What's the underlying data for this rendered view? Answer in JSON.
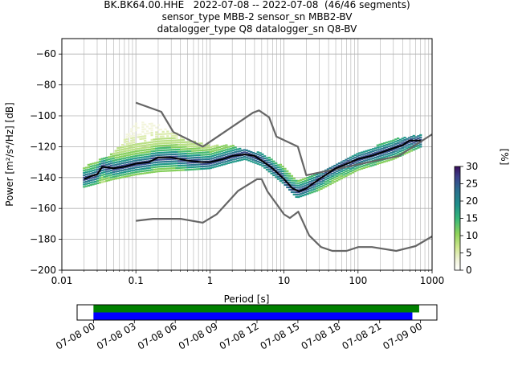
{
  "title_lines": [
    "BK.BK64.00.HHE   2022-07-08 -- 2022-07-08  (46/46 segments)",
    "sensor_type MBB-2 sensor_sn MBB2-BV",
    "datalogger_type Q8 datalogger_sn Q8-BV"
  ],
  "chart_data": [
    {
      "type": "heatmap",
      "xlabel": "Period [s]",
      "ylabel": "Power [m²/s⁴/Hz] [dB]",
      "xscale": "log",
      "xlim": [
        0.01,
        1000
      ],
      "ylim": [
        -200,
        -50
      ],
      "x_ticks": [
        0.01,
        0.1,
        1,
        10,
        100,
        1000
      ],
      "x_tick_labels": [
        "0.01",
        "0.1",
        "1",
        "10",
        "100",
        "1000"
      ],
      "y_ticks": [
        -200,
        -180,
        -160,
        -140,
        -120,
        -100,
        -80,
        -60
      ],
      "y_tick_labels": [
        "−200",
        "−180",
        "−160",
        "−140",
        "−120",
        "−100",
        "−80",
        "−60"
      ],
      "grid": true,
      "colorbar": {
        "label": "[%]",
        "range": [
          0,
          30
        ],
        "ticks": [
          0,
          5,
          10,
          15,
          20,
          25,
          30
        ],
        "tick_labels": [
          "0",
          "5",
          "10",
          "15",
          "20",
          "25",
          "30"
        ],
        "colormap": "pqlx"
      },
      "mode_curve": {
        "period": [
          0.02,
          0.025,
          0.03,
          0.035,
          0.05,
          0.07,
          0.1,
          0.15,
          0.2,
          0.3,
          0.5,
          0.8,
          1.0,
          1.5,
          2.0,
          3.0,
          4.0,
          5.0,
          7.0,
          10.0,
          13.0,
          16.0,
          20.0,
          30.0,
          50.0,
          80.0,
          100.0,
          150.0,
          200.0,
          300.0,
          400.0,
          500.0,
          700.0
        ],
        "db": [
          -141,
          -139,
          -138,
          -133,
          -134,
          -133,
          -131,
          -130,
          -127,
          -127,
          -129,
          -130,
          -130,
          -128,
          -126,
          -125,
          -126,
          -129,
          -134,
          -141,
          -147,
          -149,
          -147,
          -141,
          -134,
          -130,
          -128,
          -126,
          -124,
          -121,
          -119,
          -116,
          -116
        ]
      },
      "spread_band": {
        "period": [
          0.02,
          0.05,
          0.1,
          0.2,
          0.5,
          1.0,
          2.0,
          3.0,
          5.0,
          10.0,
          15.0,
          30.0,
          100.0,
          300.0,
          700.0
        ],
        "db_min": [
          -146,
          -141,
          -138,
          -136,
          -135,
          -134,
          -130,
          -128,
          -132,
          -144,
          -153,
          -148,
          -135,
          -128,
          -120
        ],
        "db_max": [
          -133,
          -124,
          -104,
          -105,
          -115,
          -119,
          -119,
          -122,
          -124,
          -133,
          -142,
          -136,
          -124,
          -115,
          -112
        ]
      },
      "nhnm": {
        "period": [
          0.1,
          0.22,
          0.32,
          0.8,
          3.8,
          4.6,
          6.3,
          7.9,
          15.4,
          20.0,
          354.8,
          1000.0
        ],
        "db": [
          -91.5,
          -97.4,
          -110.5,
          -120.0,
          -98.0,
          -96.5,
          -101.0,
          -113.5,
          -120.0,
          -138.5,
          -126.0,
          -112.0
        ]
      },
      "nlnm": {
        "period": [
          0.1,
          0.17,
          0.4,
          0.8,
          1.24,
          2.4,
          4.3,
          5.0,
          6.0,
          10.0,
          12.0,
          15.6,
          21.9,
          31.6,
          45.0,
          70.0,
          101.0,
          154.0,
          328.0,
          600.0,
          1000.0
        ],
        "db": [
          -168.0,
          -166.7,
          -166.7,
          -169.2,
          -163.7,
          -148.6,
          -141.1,
          -141.1,
          -149.0,
          -163.8,
          -166.2,
          -162.1,
          -177.5,
          -185.0,
          -187.5,
          -187.5,
          -185.0,
          -185.0,
          -187.5,
          -184.4,
          -178.1
        ]
      }
    },
    {
      "type": "bar",
      "title": "",
      "x_tick_labels": [
        "07-08 00",
        "07-08 03",
        "07-08 06",
        "07-08 09",
        "07-08 12",
        "07-08 15",
        "07-08 18",
        "07-08 21",
        "07-09 00"
      ],
      "x_ticks_hours": [
        0,
        3,
        6,
        9,
        12,
        15,
        18,
        21,
        24
      ],
      "xlim_hours": [
        -1.2,
        25.2
      ],
      "series": [
        {
          "color": "#008000",
          "start_hour": 0.0,
          "end_hour": 23.9
        },
        {
          "color": "#0000ff",
          "start_hour": 0.0,
          "end_hour": 23.4
        }
      ]
    }
  ]
}
